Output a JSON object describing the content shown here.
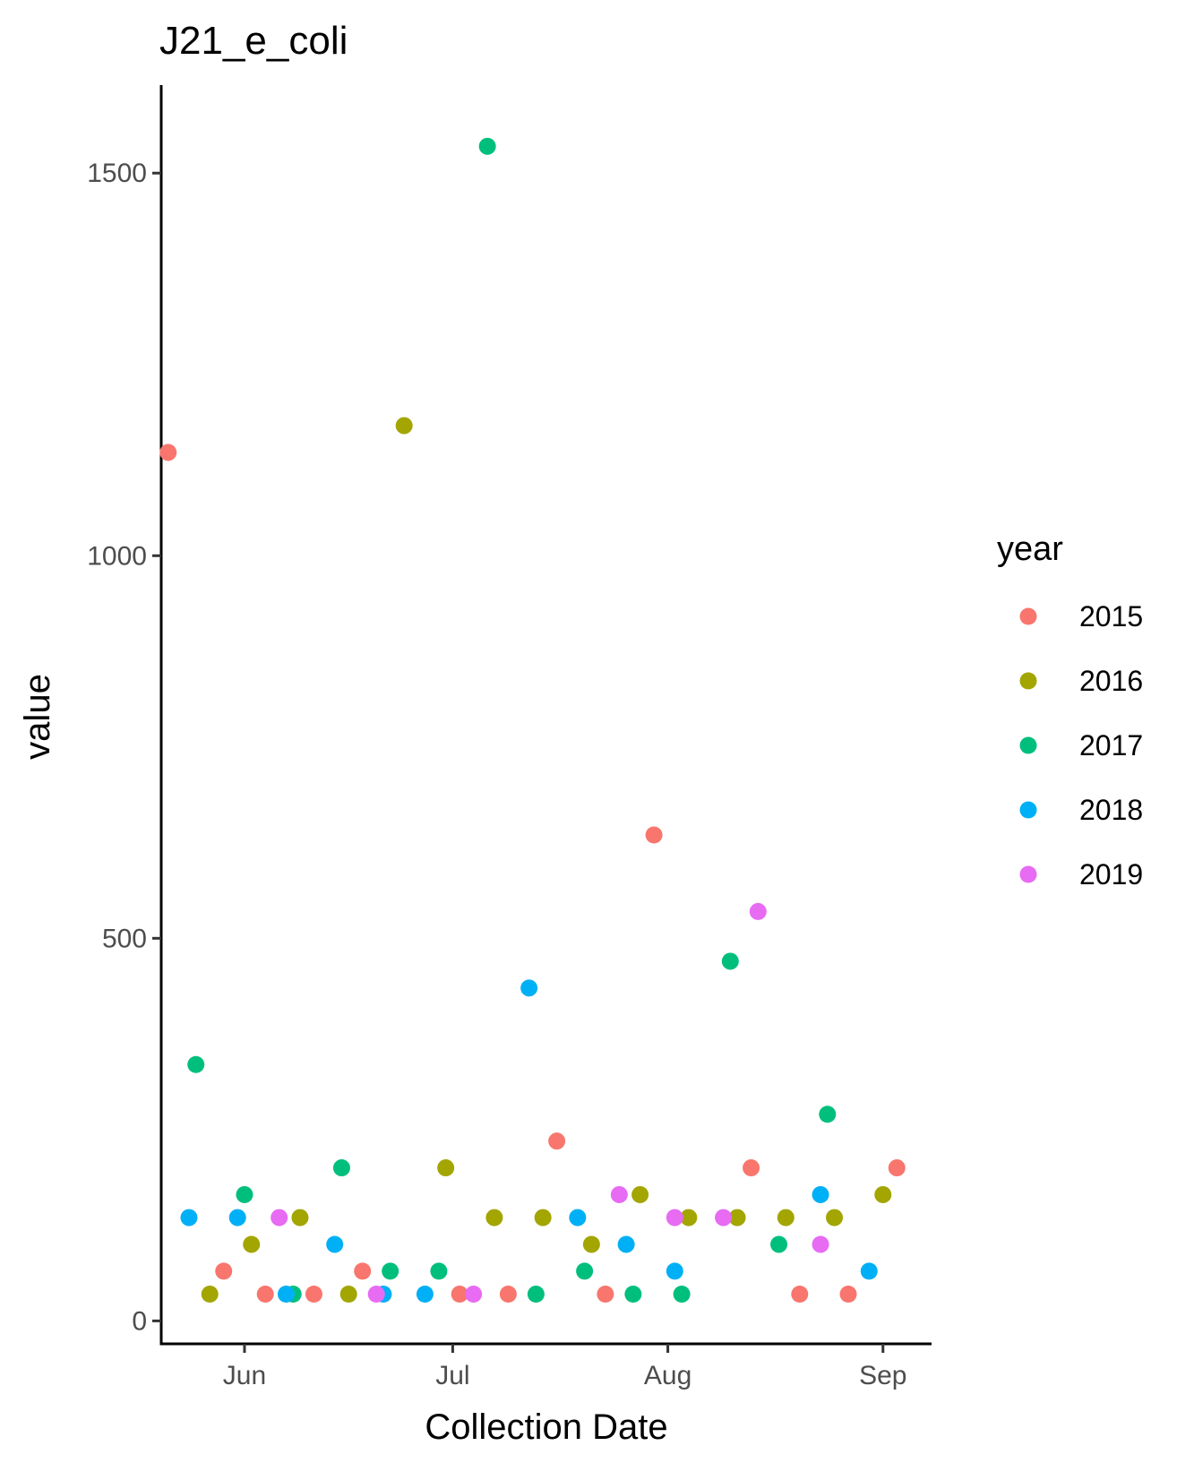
{
  "chart_data": {
    "type": "scatter",
    "title": "J21_e_coli",
    "xlabel": "Collection Date",
    "ylabel": "value",
    "xlim": [
      "2000-05-20",
      "2000-09-08"
    ],
    "ylim": [
      -30,
      1615
    ],
    "x_ticks": [
      {
        "label": "Jun",
        "value": "2000-06-01"
      },
      {
        "label": "Jul",
        "value": "2000-07-01"
      },
      {
        "label": "Aug",
        "value": "2000-08-01"
      },
      {
        "label": "Sep",
        "value": "2000-09-01"
      }
    ],
    "y_ticks": [
      0,
      500,
      1000,
      1500
    ],
    "grid": false,
    "legend": {
      "title": "year",
      "position": "right"
    },
    "series": [
      {
        "name": "2015",
        "color": "#F8766D",
        "points": [
          {
            "x": "2000-05-21",
            "y": 1135
          },
          {
            "x": "2000-05-29",
            "y": 65
          },
          {
            "x": "2000-06-04",
            "y": 35
          },
          {
            "x": "2000-06-11",
            "y": 35
          },
          {
            "x": "2000-06-18",
            "y": 65
          },
          {
            "x": "2000-07-02",
            "y": 35
          },
          {
            "x": "2000-07-09",
            "y": 35
          },
          {
            "x": "2000-07-16",
            "y": 235
          },
          {
            "x": "2000-07-23",
            "y": 35
          },
          {
            "x": "2000-07-30",
            "y": 635
          },
          {
            "x": "2000-08-13",
            "y": 200
          },
          {
            "x": "2000-08-20",
            "y": 35
          },
          {
            "x": "2000-08-27",
            "y": 35
          },
          {
            "x": "2000-09-03",
            "y": 200
          }
        ]
      },
      {
        "name": "2016",
        "color": "#A3A500",
        "points": [
          {
            "x": "2000-05-27",
            "y": 35
          },
          {
            "x": "2000-06-02",
            "y": 100
          },
          {
            "x": "2000-06-09",
            "y": 135
          },
          {
            "x": "2000-06-16",
            "y": 35
          },
          {
            "x": "2000-06-24",
            "y": 1170
          },
          {
            "x": "2000-06-30",
            "y": 200
          },
          {
            "x": "2000-07-07",
            "y": 135
          },
          {
            "x": "2000-07-14",
            "y": 135
          },
          {
            "x": "2000-07-21",
            "y": 100
          },
          {
            "x": "2000-07-28",
            "y": 165
          },
          {
            "x": "2000-08-04",
            "y": 135
          },
          {
            "x": "2000-08-11",
            "y": 135
          },
          {
            "x": "2000-08-18",
            "y": 135
          },
          {
            "x": "2000-08-25",
            "y": 135
          },
          {
            "x": "2000-09-01",
            "y": 165
          }
        ]
      },
      {
        "name": "2017",
        "color": "#00BF7D",
        "points": [
          {
            "x": "2000-05-25",
            "y": 335
          },
          {
            "x": "2000-06-01",
            "y": 165
          },
          {
            "x": "2000-06-08",
            "y": 35
          },
          {
            "x": "2000-06-15",
            "y": 200
          },
          {
            "x": "2000-06-22",
            "y": 65
          },
          {
            "x": "2000-06-29",
            "y": 65
          },
          {
            "x": "2000-07-06",
            "y": 1535
          },
          {
            "x": "2000-07-13",
            "y": 35
          },
          {
            "x": "2000-07-20",
            "y": 65
          },
          {
            "x": "2000-07-27",
            "y": 35
          },
          {
            "x": "2000-08-03",
            "y": 35
          },
          {
            "x": "2000-08-10",
            "y": 470
          },
          {
            "x": "2000-08-17",
            "y": 100
          },
          {
            "x": "2000-08-24",
            "y": 270
          }
        ]
      },
      {
        "name": "2018",
        "color": "#00B0F6",
        "points": [
          {
            "x": "2000-05-24",
            "y": 135
          },
          {
            "x": "2000-05-31",
            "y": 135
          },
          {
            "x": "2000-06-07",
            "y": 35
          },
          {
            "x": "2000-06-14",
            "y": 100
          },
          {
            "x": "2000-06-21",
            "y": 35
          },
          {
            "x": "2000-06-27",
            "y": 35
          },
          {
            "x": "2000-07-12",
            "y": 435
          },
          {
            "x": "2000-07-19",
            "y": 135
          },
          {
            "x": "2000-07-26",
            "y": 100
          },
          {
            "x": "2000-08-02",
            "y": 65
          },
          {
            "x": "2000-08-23",
            "y": 165
          },
          {
            "x": "2000-08-30",
            "y": 65
          }
        ]
      },
      {
        "name": "2019",
        "color": "#E76BF3",
        "points": [
          {
            "x": "2000-06-06",
            "y": 135
          },
          {
            "x": "2000-06-20",
            "y": 35
          },
          {
            "x": "2000-07-04",
            "y": 35
          },
          {
            "x": "2000-07-25",
            "y": 165
          },
          {
            "x": "2000-08-02",
            "y": 135
          },
          {
            "x": "2000-08-09",
            "y": 135
          },
          {
            "x": "2000-08-14",
            "y": 535
          },
          {
            "x": "2000-08-23",
            "y": 100
          }
        ]
      }
    ]
  }
}
